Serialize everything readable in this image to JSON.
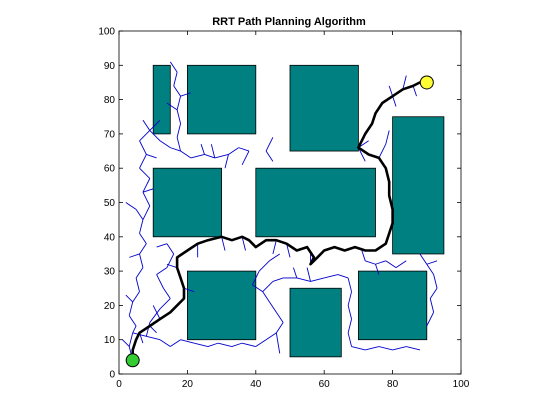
{
  "chart_data": {
    "type": "scatter",
    "title": "RRT Path Planning Algorithm",
    "xlabel": "",
    "ylabel": "",
    "xlim": [
      0,
      100
    ],
    "ylim": [
      0,
      100
    ],
    "xticks": [
      0,
      20,
      40,
      60,
      80,
      100
    ],
    "yticks": [
      0,
      10,
      20,
      30,
      40,
      50,
      60,
      70,
      80,
      90,
      100
    ],
    "grid": false,
    "colors": {
      "obstacle": "#008080",
      "tree": "#0000cc",
      "path": "#000000",
      "start": "#33cc33",
      "goal": "#ffff33"
    },
    "obstacles": [
      {
        "x": 10,
        "y": 70,
        "w": 5,
        "h": 20
      },
      {
        "x": 20,
        "y": 70,
        "w": 20,
        "h": 20
      },
      {
        "x": 50,
        "y": 65,
        "w": 20,
        "h": 25
      },
      {
        "x": 80,
        "y": 35,
        "w": 15,
        "h": 40
      },
      {
        "x": 10,
        "y": 40,
        "w": 20,
        "h": 20
      },
      {
        "x": 40,
        "y": 40,
        "w": 35,
        "h": 20
      },
      {
        "x": 20,
        "y": 10,
        "w": 20,
        "h": 20
      },
      {
        "x": 50,
        "y": 5,
        "w": 15,
        "h": 20
      },
      {
        "x": 70,
        "y": 10,
        "w": 20,
        "h": 20
      }
    ],
    "start": {
      "x": 4,
      "y": 4
    },
    "goal": {
      "x": 90,
      "y": 85
    },
    "path": [
      [
        4,
        4
      ],
      [
        4,
        7
      ],
      [
        5,
        10
      ],
      [
        6,
        12
      ],
      [
        9,
        14
      ],
      [
        12,
        16
      ],
      [
        15,
        18
      ],
      [
        17,
        20
      ],
      [
        19,
        22
      ],
      [
        19,
        25
      ],
      [
        18,
        28
      ],
      [
        17,
        31
      ],
      [
        17,
        34
      ],
      [
        20,
        36
      ],
      [
        23,
        38
      ],
      [
        26,
        39
      ],
      [
        30,
        40
      ],
      [
        33,
        39
      ],
      [
        36,
        40
      ],
      [
        38,
        39
      ],
      [
        40,
        37
      ],
      [
        43,
        39
      ],
      [
        46,
        39
      ],
      [
        49,
        38
      ],
      [
        52,
        36
      ],
      [
        55,
        37
      ],
      [
        57,
        34
      ],
      [
        56,
        32
      ],
      [
        58,
        34
      ],
      [
        60,
        36
      ],
      [
        63,
        37
      ],
      [
        66,
        36
      ],
      [
        69,
        37
      ],
      [
        72,
        36
      ],
      [
        75,
        36
      ],
      [
        78,
        38
      ],
      [
        79,
        41
      ],
      [
        80,
        44
      ],
      [
        80,
        48
      ],
      [
        79,
        52
      ],
      [
        79,
        56
      ],
      [
        78,
        60
      ],
      [
        76,
        63
      ],
      [
        73,
        64
      ],
      [
        70,
        66
      ],
      [
        72,
        70
      ],
      [
        74,
        73
      ],
      [
        75,
        76
      ],
      [
        77,
        79
      ],
      [
        80,
        81
      ],
      [
        83,
        83
      ],
      [
        86,
        84
      ],
      [
        88,
        85
      ],
      [
        90,
        85
      ]
    ],
    "tree_edges": [
      [
        [
          4,
          4
        ],
        [
          3,
          8
        ]
      ],
      [
        [
          3,
          8
        ],
        [
          4,
          12
        ]
      ],
      [
        [
          3,
          8
        ],
        [
          1,
          10
        ]
      ],
      [
        [
          4,
          12
        ],
        [
          5,
          14
        ]
      ],
      [
        [
          5,
          14
        ],
        [
          3,
          17
        ]
      ],
      [
        [
          3,
          17
        ],
        [
          4,
          21
        ]
      ],
      [
        [
          4,
          21
        ],
        [
          2,
          23
        ]
      ],
      [
        [
          4,
          21
        ],
        [
          6,
          24
        ]
      ],
      [
        [
          6,
          24
        ],
        [
          5,
          28
        ]
      ],
      [
        [
          5,
          28
        ],
        [
          7,
          31
        ]
      ],
      [
        [
          7,
          31
        ],
        [
          6,
          35
        ]
      ],
      [
        [
          6,
          35
        ],
        [
          8,
          38
        ]
      ],
      [
        [
          8,
          38
        ],
        [
          6,
          41
        ]
      ],
      [
        [
          6,
          41
        ],
        [
          7,
          45
        ]
      ],
      [
        [
          7,
          45
        ],
        [
          5,
          48
        ]
      ],
      [
        [
          7,
          45
        ],
        [
          9,
          49
        ]
      ],
      [
        [
          9,
          49
        ],
        [
          7,
          53
        ]
      ],
      [
        [
          7,
          53
        ],
        [
          9,
          57
        ]
      ],
      [
        [
          9,
          57
        ],
        [
          6,
          60
        ]
      ],
      [
        [
          6,
          60
        ],
        [
          8,
          64
        ]
      ],
      [
        [
          8,
          64
        ],
        [
          6,
          68
        ]
      ],
      [
        [
          6,
          68
        ],
        [
          9,
          71
        ]
      ],
      [
        [
          9,
          71
        ],
        [
          7,
          74
        ]
      ],
      [
        [
          9,
          71
        ],
        [
          12,
          68
        ]
      ],
      [
        [
          12,
          68
        ],
        [
          15,
          66
        ]
      ],
      [
        [
          15,
          66
        ],
        [
          18,
          65
        ]
      ],
      [
        [
          18,
          65
        ],
        [
          21,
          63
        ]
      ],
      [
        [
          21,
          63
        ],
        [
          25,
          64
        ]
      ],
      [
        [
          25,
          64
        ],
        [
          28,
          63
        ]
      ],
      [
        [
          28,
          63
        ],
        [
          32,
          64
        ]
      ],
      [
        [
          32,
          64
        ],
        [
          35,
          66
        ]
      ],
      [
        [
          35,
          66
        ],
        [
          38,
          65
        ]
      ],
      [
        [
          18,
          65
        ],
        [
          17,
          69
        ]
      ],
      [
        [
          17,
          69
        ],
        [
          18,
          73
        ]
      ],
      [
        [
          18,
          73
        ],
        [
          17,
          77
        ]
      ],
      [
        [
          17,
          77
        ],
        [
          18,
          81
        ]
      ],
      [
        [
          18,
          81
        ],
        [
          16,
          84
        ]
      ],
      [
        [
          16,
          84
        ],
        [
          17,
          88
        ]
      ],
      [
        [
          17,
          88
        ],
        [
          15,
          91
        ]
      ],
      [
        [
          5,
          48
        ],
        [
          2,
          50
        ]
      ],
      [
        [
          6,
          35
        ],
        [
          3,
          34
        ]
      ],
      [
        [
          4,
          12
        ],
        [
          8,
          11
        ]
      ],
      [
        [
          8,
          11
        ],
        [
          12,
          10
        ]
      ],
      [
        [
          12,
          10
        ],
        [
          15,
          8
        ]
      ],
      [
        [
          15,
          8
        ],
        [
          18,
          10
        ]
      ],
      [
        [
          18,
          10
        ],
        [
          22,
          9
        ]
      ],
      [
        [
          22,
          9
        ],
        [
          26,
          8
        ]
      ],
      [
        [
          26,
          8
        ],
        [
          29,
          9
        ]
      ],
      [
        [
          29,
          9
        ],
        [
          33,
          8
        ]
      ],
      [
        [
          33,
          8
        ],
        [
          36,
          9
        ]
      ],
      [
        [
          36,
          9
        ],
        [
          40,
          8
        ]
      ],
      [
        [
          40,
          8
        ],
        [
          43,
          10
        ]
      ],
      [
        [
          43,
          10
        ],
        [
          46,
          12
        ]
      ],
      [
        [
          46,
          12
        ],
        [
          48,
          15
        ]
      ],
      [
        [
          48,
          15
        ],
        [
          46,
          18
        ]
      ],
      [
        [
          46,
          18
        ],
        [
          44,
          21
        ]
      ],
      [
        [
          44,
          21
        ],
        [
          42,
          24
        ]
      ],
      [
        [
          42,
          24
        ],
        [
          45,
          27
        ]
      ],
      [
        [
          45,
          27
        ],
        [
          48,
          28
        ]
      ],
      [
        [
          48,
          28
        ],
        [
          52,
          28
        ]
      ],
      [
        [
          52,
          28
        ],
        [
          56,
          27
        ]
      ],
      [
        [
          56,
          27
        ],
        [
          60,
          28
        ]
      ],
      [
        [
          60,
          28
        ],
        [
          64,
          29
        ]
      ],
      [
        [
          64,
          29
        ],
        [
          67,
          28
        ]
      ],
      [
        [
          67,
          28
        ],
        [
          68,
          24
        ]
      ],
      [
        [
          68,
          24
        ],
        [
          67,
          20
        ]
      ],
      [
        [
          67,
          20
        ],
        [
          68,
          16
        ]
      ],
      [
        [
          68,
          16
        ],
        [
          67,
          12
        ]
      ],
      [
        [
          67,
          12
        ],
        [
          68,
          8
        ]
      ],
      [
        [
          68,
          8
        ],
        [
          72,
          7
        ]
      ],
      [
        [
          72,
          7
        ],
        [
          76,
          8
        ]
      ],
      [
        [
          76,
          8
        ],
        [
          80,
          7
        ]
      ],
      [
        [
          80,
          7
        ],
        [
          84,
          8
        ]
      ],
      [
        [
          84,
          8
        ],
        [
          88,
          7
        ]
      ],
      [
        [
          46,
          12
        ],
        [
          47,
          6
        ]
      ],
      [
        [
          8,
          11
        ],
        [
          9,
          15
        ]
      ],
      [
        [
          9,
          15
        ],
        [
          12,
          19
        ]
      ],
      [
        [
          12,
          19
        ],
        [
          15,
          22
        ]
      ],
      [
        [
          15,
          22
        ],
        [
          13,
          25
        ]
      ],
      [
        [
          13,
          25
        ],
        [
          11,
          29
        ]
      ],
      [
        [
          11,
          29
        ],
        [
          14,
          31
        ]
      ],
      [
        [
          14,
          31
        ],
        [
          16,
          35
        ]
      ],
      [
        [
          16,
          35
        ],
        [
          14,
          38
        ]
      ],
      [
        [
          14,
          38
        ],
        [
          11,
          37
        ]
      ],
      [
        [
          42,
          24
        ],
        [
          39,
          26
        ]
      ],
      [
        [
          39,
          26
        ],
        [
          41,
          30
        ]
      ],
      [
        [
          41,
          30
        ],
        [
          44,
          33
        ]
      ],
      [
        [
          44,
          33
        ],
        [
          47,
          35
        ]
      ],
      [
        [
          38,
          65
        ],
        [
          36,
          61
        ]
      ],
      [
        [
          52,
          28
        ],
        [
          51,
          31
        ]
      ],
      [
        [
          56,
          27
        ],
        [
          55,
          31
        ]
      ],
      [
        [
          56,
          32
        ],
        [
          56,
          35
        ]
      ],
      [
        [
          88,
          35
        ],
        [
          90,
          32
        ]
      ],
      [
        [
          90,
          32
        ],
        [
          93,
          33
        ]
      ],
      [
        [
          90,
          32
        ],
        [
          92,
          29
        ]
      ],
      [
        [
          92,
          29
        ],
        [
          93,
          25
        ]
      ],
      [
        [
          93,
          25
        ],
        [
          91,
          22
        ]
      ],
      [
        [
          91,
          22
        ],
        [
          92,
          18
        ]
      ],
      [
        [
          92,
          18
        ],
        [
          90,
          14
        ]
      ],
      [
        [
          71,
          36
        ],
        [
          72,
          33
        ]
      ],
      [
        [
          72,
          33
        ],
        [
          75,
          32
        ]
      ],
      [
        [
          75,
          32
        ],
        [
          78,
          33
        ]
      ],
      [
        [
          78,
          33
        ],
        [
          81,
          31
        ]
      ],
      [
        [
          81,
          31
        ],
        [
          84,
          33
        ]
      ],
      [
        [
          75,
          32
        ],
        [
          76,
          29
        ]
      ],
      [
        [
          45,
          62
        ],
        [
          43,
          65
        ]
      ],
      [
        [
          43,
          65
        ],
        [
          45,
          69
        ]
      ],
      [
        [
          70,
          66
        ],
        [
          73,
          68
        ]
      ],
      [
        [
          76,
          63
        ],
        [
          78,
          67
        ]
      ],
      [
        [
          78,
          67
        ],
        [
          79,
          71
        ]
      ],
      [
        [
          80,
          81
        ],
        [
          81,
          78
        ]
      ],
      [
        [
          80,
          81
        ],
        [
          79,
          84
        ]
      ],
      [
        [
          83,
          83
        ],
        [
          84,
          87
        ]
      ],
      [
        [
          86,
          84
        ],
        [
          87,
          81
        ]
      ],
      [
        [
          70,
          66
        ],
        [
          72,
          62
        ]
      ],
      [
        [
          17,
          31
        ],
        [
          14,
          32
        ]
      ],
      [
        [
          19,
          25
        ],
        [
          22,
          24
        ]
      ],
      [
        [
          23,
          38
        ],
        [
          23,
          34
        ]
      ],
      [
        [
          30,
          40
        ],
        [
          31,
          36
        ]
      ],
      [
        [
          36,
          40
        ],
        [
          37,
          36
        ]
      ],
      [
        [
          46,
          39
        ],
        [
          45,
          35
        ]
      ],
      [
        [
          49,
          38
        ],
        [
          50,
          34
        ]
      ],
      [
        [
          12,
          16
        ],
        [
          10,
          20
        ]
      ],
      [
        [
          9,
          14
        ],
        [
          11,
          12
        ]
      ],
      [
        [
          6,
          12
        ],
        [
          7,
          9
        ]
      ],
      [
        [
          32,
          64
        ],
        [
          31,
          60
        ]
      ],
      [
        [
          28,
          63
        ],
        [
          27,
          67
        ]
      ],
      [
        [
          25,
          64
        ],
        [
          24,
          67
        ]
      ],
      [
        [
          7,
          53
        ],
        [
          10,
          54
        ]
      ],
      [
        [
          8,
          64
        ],
        [
          11,
          63
        ]
      ],
      [
        [
          9,
          71
        ],
        [
          12,
          74
        ]
      ],
      [
        [
          18,
          81
        ],
        [
          21,
          82
        ]
      ],
      [
        [
          17,
          77
        ],
        [
          14,
          79
        ]
      ]
    ]
  }
}
